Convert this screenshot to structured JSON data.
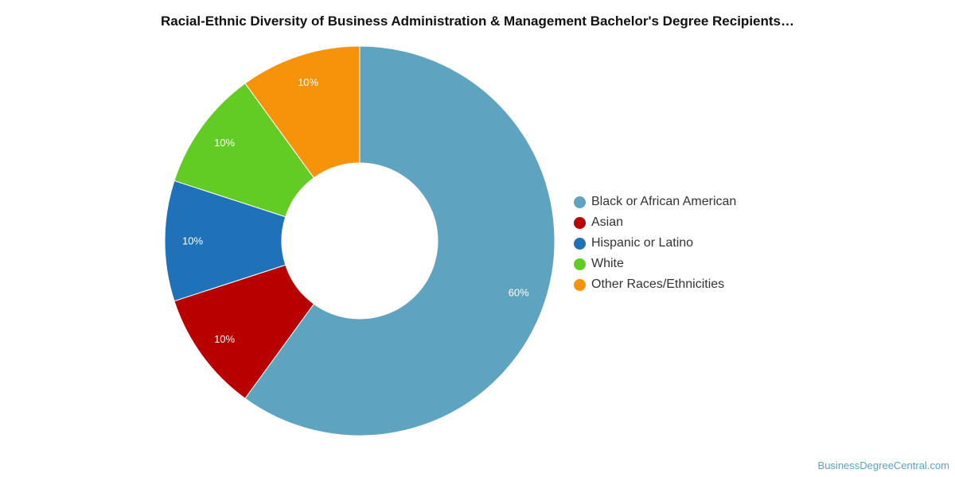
{
  "chart_data": {
    "type": "pie",
    "title": "Racial-Ethnic Diversity of Business Administration & Management Bachelor's Degree Recipients…",
    "categories": [
      "Black or African American",
      "Asian",
      "Hispanic or Latino",
      "White",
      "Other Races/Ethnicities"
    ],
    "values": [
      60,
      10,
      10,
      10,
      10
    ],
    "labels": [
      "60%",
      "10%",
      "10%",
      "10%",
      "10%"
    ],
    "colors": [
      "#5ea3bf",
      "#b80000",
      "#1f72b8",
      "#62cc24",
      "#f7930a"
    ],
    "donut": true,
    "legend_position": "right"
  },
  "watermark": "BusinessDegreeCentral.com"
}
